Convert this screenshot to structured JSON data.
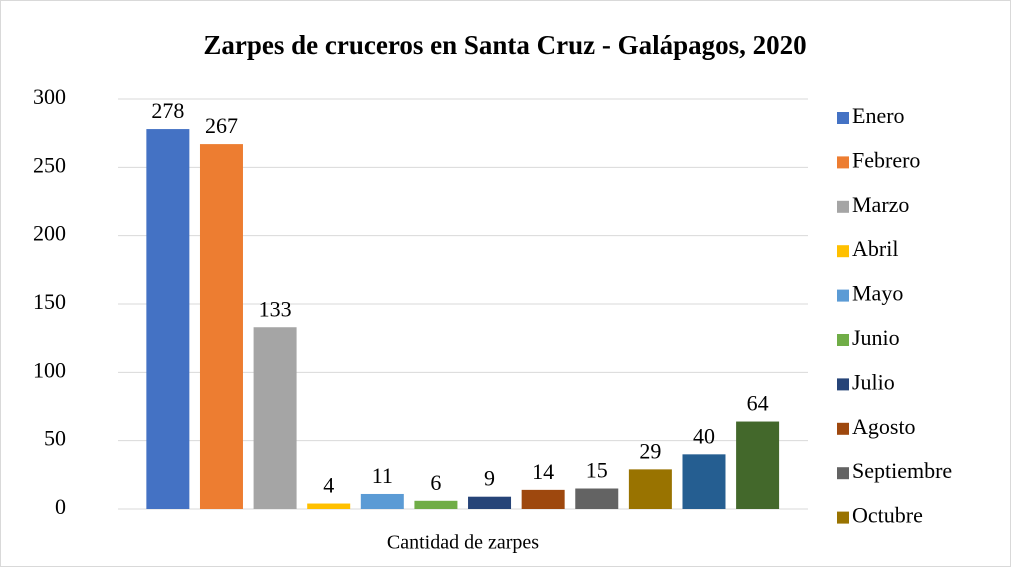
{
  "chart_data": {
    "type": "bar",
    "title": "Zarpes de cruceros en Santa Cruz - Galápagos, 2020",
    "categories": [
      "Cantidad de zarpes"
    ],
    "series": [
      {
        "name": "Enero",
        "color": "#4472c4",
        "values": [
          278
        ]
      },
      {
        "name": "Febrero",
        "color": "#ed7d31",
        "values": [
          267
        ]
      },
      {
        "name": "Marzo",
        "color": "#a5a5a5",
        "values": [
          133
        ]
      },
      {
        "name": "Abril",
        "color": "#ffc000",
        "values": [
          4
        ]
      },
      {
        "name": "Mayo",
        "color": "#5b9bd5",
        "values": [
          11
        ]
      },
      {
        "name": "Junio",
        "color": "#70ad47",
        "values": [
          6
        ]
      },
      {
        "name": "Julio",
        "color": "#264478",
        "values": [
          9
        ]
      },
      {
        "name": "Agosto",
        "color": "#9e480e",
        "values": [
          14
        ]
      },
      {
        "name": "Septiembre",
        "color": "#636363",
        "values": [
          15
        ]
      },
      {
        "name": "Octubre",
        "color": "#997300",
        "values": [
          29
        ]
      },
      {
        "name": null,
        "color": "#255e91",
        "values": [
          40
        ]
      },
      {
        "name": null,
        "color": "#43682b",
        "values": [
          64
        ]
      }
    ],
    "ylim": [
      0,
      300
    ],
    "yticks": [
      0,
      50,
      100,
      150,
      200,
      250,
      300
    ],
    "grid": true,
    "legend": "right"
  }
}
